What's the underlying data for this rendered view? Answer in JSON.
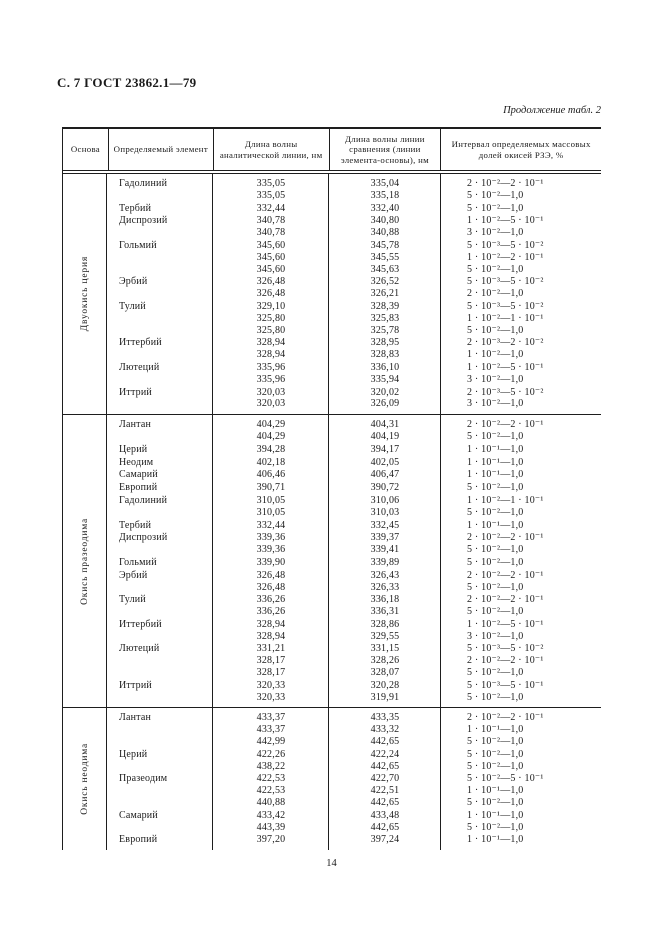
{
  "page": {
    "header": "С. 7 ГОСТ 23862.1—79",
    "continuation": "Продолжение табл. 2",
    "page_number": "14"
  },
  "table": {
    "columns": [
      "Основа",
      "Определяемый элемент",
      "Длина волны аналитической линии, нм",
      "Длина волны линии сравнения (линии элемента-основы), нм",
      "Интервал определяемых массовых долей окисей РЗЭ, %"
    ],
    "sections": [
      {
        "base": "Двуокись церия",
        "rows": [
          {
            "element": "Гадолиний",
            "analytical": "335,05",
            "comparison": "335,04",
            "interval": "2 · 10⁻²—2 · 10⁻¹"
          },
          {
            "element": "",
            "analytical": "335,05",
            "comparison": "335,18",
            "interval": "5 · 10⁻²—1,0"
          },
          {
            "element": "Тербий",
            "analytical": "332,44",
            "comparison": "332,40",
            "interval": "5 · 10⁻²—1,0"
          },
          {
            "element": "Диспрозий",
            "analytical": "340,78",
            "comparison": "340,80",
            "interval": "1 · 10⁻²—5 · 10⁻¹"
          },
          {
            "element": "",
            "analytical": "340,78",
            "comparison": "340,88",
            "interval": "3 · 10⁻²—1,0"
          },
          {
            "element": "Гольмий",
            "analytical": "345,60",
            "comparison": "345,78",
            "interval": "5 · 10⁻³—5 · 10⁻²"
          },
          {
            "element": "",
            "analytical": "345,60",
            "comparison": "345,55",
            "interval": "1 · 10⁻²—2 · 10⁻¹"
          },
          {
            "element": "",
            "analytical": "345,60",
            "comparison": "345,63",
            "interval": "5 · 10⁻²—1,0"
          },
          {
            "element": "Эрбий",
            "analytical": "326,48",
            "comparison": "326,52",
            "interval": "5 · 10⁻³—5 · 10⁻²"
          },
          {
            "element": "",
            "analytical": "326,48",
            "comparison": "326,21",
            "interval": "2 · 10⁻²—1,0"
          },
          {
            "element": "Тулий",
            "analytical": "329,10",
            "comparison": "328,39",
            "interval": "5 · 10⁻³—5 · 10⁻²"
          },
          {
            "element": "",
            "analytical": "325,80",
            "comparison": "325,83",
            "interval": "1 · 10⁻²—1 · 10⁻¹"
          },
          {
            "element": "",
            "analytical": "325,80",
            "comparison": "325,78",
            "interval": "5 · 10⁻²—1,0"
          },
          {
            "element": "Иттербий",
            "analytical": "328,94",
            "comparison": "328,95",
            "interval": "2 · 10⁻³—2 · 10⁻²"
          },
          {
            "element": "",
            "analytical": "328,94",
            "comparison": "328,83",
            "interval": "1 · 10⁻²—1,0"
          },
          {
            "element": "Лютеций",
            "analytical": "335,96",
            "comparison": "336,10",
            "interval": "1 · 10⁻²—5 · 10⁻¹"
          },
          {
            "element": "",
            "analytical": "335,96",
            "comparison": "335,94",
            "interval": "3 · 10⁻²—1,0"
          },
          {
            "element": "Иттрий",
            "analytical": "320,03",
            "comparison": "320,02",
            "interval": "2 · 10⁻³—5 · 10⁻²"
          },
          {
            "element": "",
            "analytical": "320,03",
            "comparison": "326,09",
            "interval": "3 · 10⁻²—1,0"
          }
        ]
      },
      {
        "base": "Окись празеодима",
        "rows": [
          {
            "element": "Лантан",
            "analytical": "404,29",
            "comparison": "404,31",
            "interval": "2 · 10⁻²—2 · 10⁻¹"
          },
          {
            "element": "",
            "analytical": "404,29",
            "comparison": "404,19",
            "interval": "5 · 10⁻²—1,0"
          },
          {
            "element": "Церий",
            "analytical": "394,28",
            "comparison": "394,17",
            "interval": "1 · 10⁻¹—1,0"
          },
          {
            "element": "Неодим",
            "analytical": "402,18",
            "comparison": "402,05",
            "interval": "1 · 10⁻¹—1,0"
          },
          {
            "element": "Самарий",
            "analytical": "406,46",
            "comparison": "406,47",
            "interval": "1 · 10⁻¹—1,0"
          },
          {
            "element": "Европий",
            "analytical": "390,71",
            "comparison": "390,72",
            "interval": "5 · 10⁻²—1,0"
          },
          {
            "element": "Гадолиний",
            "analytical": "310,05",
            "comparison": "310,06",
            "interval": "1 · 10⁻²—1 · 10⁻¹"
          },
          {
            "element": "",
            "analytical": "310,05",
            "comparison": "310,03",
            "interval": "5 · 10⁻²—1,0"
          },
          {
            "element": "Тербий",
            "analytical": "332,44",
            "comparison": "332,45",
            "interval": "1 · 10⁻¹—1,0"
          },
          {
            "element": "Диспрозий",
            "analytical": "339,36",
            "comparison": "339,37",
            "interval": "2 · 10⁻²—2 · 10⁻¹"
          },
          {
            "element": "",
            "analytical": "339,36",
            "comparison": "339,41",
            "interval": "5 · 10⁻²—1,0"
          },
          {
            "element": "Гольмий",
            "analytical": "339,90",
            "comparison": "339,89",
            "interval": "5 · 10⁻²—1,0"
          },
          {
            "element": "Эрбий",
            "analytical": "326,48",
            "comparison": "326,43",
            "interval": "2 · 10⁻²—2 · 10⁻¹"
          },
          {
            "element": "",
            "analytical": "326,48",
            "comparison": "326,33",
            "interval": "5 · 10⁻²—1,0"
          },
          {
            "element": "Тулий",
            "analytical": "336,26",
            "comparison": "336,18",
            "interval": "2 · 10⁻²—2 · 10⁻¹"
          },
          {
            "element": "",
            "analytical": "336,26",
            "comparison": "336,31",
            "interval": "5 · 10⁻²—1,0"
          },
          {
            "element": "Иттербий",
            "analytical": "328,94",
            "comparison": "328,86",
            "interval": "1 · 10⁻²—5 · 10⁻¹"
          },
          {
            "element": "",
            "analytical": "328,94",
            "comparison": "329,55",
            "interval": "3 · 10⁻²—1,0"
          },
          {
            "element": "Лютеций",
            "analytical": "331,21",
            "comparison": "331,15",
            "interval": "5 · 10⁻³—5 · 10⁻²"
          },
          {
            "element": "",
            "analytical": "328,17",
            "comparison": "328,26",
            "interval": "2 · 10⁻²—2 · 10⁻¹"
          },
          {
            "element": "",
            "analytical": "328,17",
            "comparison": "328,07",
            "interval": "5 · 10⁻²—1,0"
          },
          {
            "element": "Иттрий",
            "analytical": "320,33",
            "comparison": "320,28",
            "interval": "5 · 10⁻³—5 · 10⁻¹"
          },
          {
            "element": "",
            "analytical": "320,33",
            "comparison": "319,91",
            "interval": "5 · 10⁻²—1,0"
          }
        ]
      },
      {
        "base": "Окись неодима",
        "rows": [
          {
            "element": "Лантан",
            "analytical": "433,37",
            "comparison": "433,35",
            "interval": "2 · 10⁻²—2 · 10⁻¹"
          },
          {
            "element": "",
            "analytical": "433,37",
            "comparison": "433,32",
            "interval": "1 · 10⁻¹—1,0"
          },
          {
            "element": "",
            "analytical": "442,99",
            "comparison": "442,65",
            "interval": "5 · 10⁻²—1,0"
          },
          {
            "element": "Церий",
            "analytical": "422,26",
            "comparison": "422,24",
            "interval": "5 · 10⁻²—1,0"
          },
          {
            "element": "",
            "analytical": "438,22",
            "comparison": "442,65",
            "interval": "5 · 10⁻²—1,0"
          },
          {
            "element": "Празеодим",
            "analytical": "422,53",
            "comparison": "422,70",
            "interval": "5 · 10⁻²—5 · 10⁻¹"
          },
          {
            "element": "",
            "analytical": "422,53",
            "comparison": "422,51",
            "interval": "1 · 10⁻¹—1,0"
          },
          {
            "element": "",
            "analytical": "440,88",
            "comparison": "442,65",
            "interval": "5 · 10⁻²—1,0"
          },
          {
            "element": "Самарий",
            "analytical": "433,42",
            "comparison": "433,48",
            "interval": "1 · 10⁻¹—1,0"
          },
          {
            "element": "",
            "analytical": "443,39",
            "comparison": "442,65",
            "interval": "5 · 10⁻²—1,0"
          },
          {
            "element": "Европий",
            "analytical": "397,20",
            "comparison": "397,24",
            "interval": "1 · 10⁻¹—1,0"
          }
        ]
      }
    ]
  }
}
